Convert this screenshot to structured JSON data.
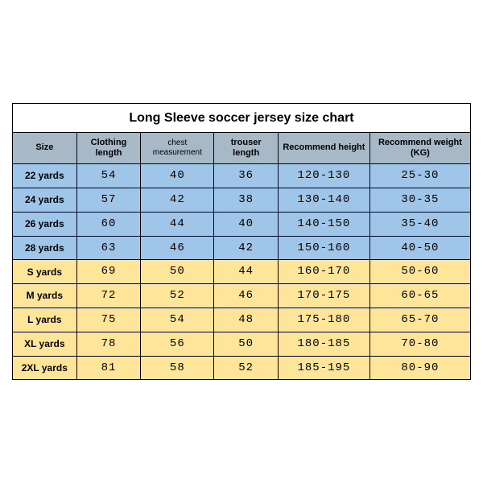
{
  "table": {
    "title": "Long Sleeve soccer jersey size chart",
    "columns": [
      {
        "label": "Size",
        "width": "14%"
      },
      {
        "label": "Clothing length",
        "width": "14%"
      },
      {
        "label": "chest measurement",
        "width": "16%",
        "small": true
      },
      {
        "label": "trouser length",
        "width": "14%"
      },
      {
        "label": "Recommend height",
        "width": "20%"
      },
      {
        "label": "Recommend weight (KG)",
        "width": "22%"
      }
    ],
    "header_bg": "#a7b9c6",
    "group_colors": {
      "kids": "#9fc5e8",
      "adult": "#ffe599"
    },
    "border_color": "#000000",
    "rows": [
      {
        "group": "kids",
        "cells": [
          "22 yards",
          "54",
          "40",
          "36",
          "120-130",
          "25-30"
        ]
      },
      {
        "group": "kids",
        "cells": [
          "24 yards",
          "57",
          "42",
          "38",
          "130-140",
          "30-35"
        ]
      },
      {
        "group": "kids",
        "cells": [
          "26 yards",
          "60",
          "44",
          "40",
          "140-150",
          "35-40"
        ]
      },
      {
        "group": "kids",
        "cells": [
          "28 yards",
          "63",
          "46",
          "42",
          "150-160",
          "40-50"
        ]
      },
      {
        "group": "adult",
        "cells": [
          "S yards",
          "69",
          "50",
          "44",
          "160-170",
          "50-60"
        ]
      },
      {
        "group": "adult",
        "cells": [
          "M yards",
          "72",
          "52",
          "46",
          "170-175",
          "60-65"
        ]
      },
      {
        "group": "adult",
        "cells": [
          "L yards",
          "75",
          "54",
          "48",
          "175-180",
          "65-70"
        ]
      },
      {
        "group": "adult",
        "cells": [
          "XL yards",
          "78",
          "56",
          "50",
          "180-185",
          "70-80"
        ]
      },
      {
        "group": "adult",
        "cells": [
          "2XL yards",
          "81",
          "58",
          "52",
          "185-195",
          "80-90"
        ]
      }
    ]
  }
}
